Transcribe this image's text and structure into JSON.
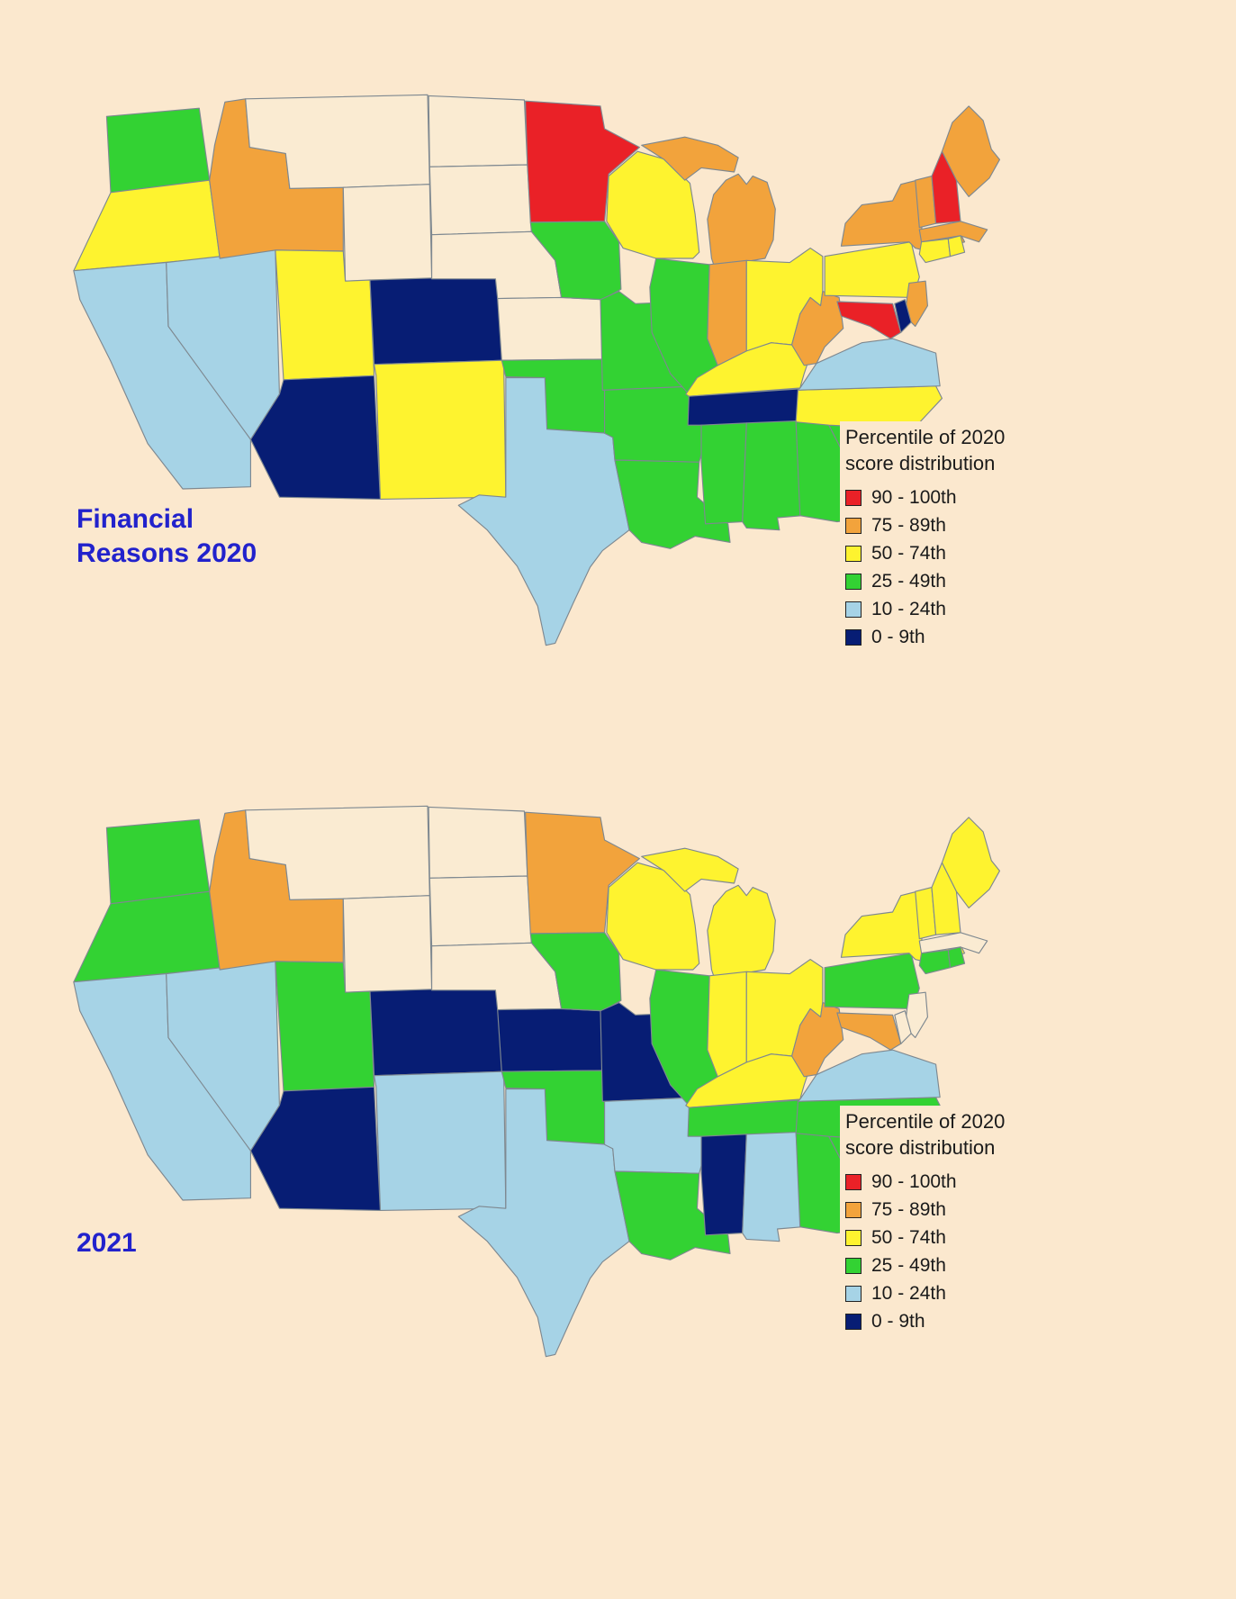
{
  "page": {
    "background_color": "#FBE8CE"
  },
  "legend": {
    "title_line1": "Percentile of 2020",
    "title_line2": "score distribution",
    "items": [
      {
        "key": "p90",
        "label": "90 - 100th",
        "color": "#EA2127"
      },
      {
        "key": "p75",
        "label": "75 - 89th",
        "color": "#F2A33C"
      },
      {
        "key": "p50",
        "label": "50 - 74th",
        "color": "#FEF32F"
      },
      {
        "key": "p25",
        "label": "25 - 49th",
        "color": "#33D233"
      },
      {
        "key": "p10",
        "label": "10 - 24th",
        "color": "#A6D3E6"
      },
      {
        "key": "p0",
        "label": "0 - 9th",
        "color": "#071D74"
      }
    ],
    "nodata_color": "#FAEBD2",
    "border_color": "#7E8890"
  },
  "maps": [
    {
      "title_lines": [
        "Financial",
        "Reasons 2020"
      ],
      "states": {
        "WA": "p25",
        "OR": "p50",
        "CA": "p10",
        "NV": "p10",
        "ID": "p75",
        "MT": null,
        "WY": null,
        "UT": "p50",
        "CO": "p0",
        "AZ": "p0",
        "NM": "p50",
        "ND": null,
        "SD": null,
        "NE": null,
        "KS": null,
        "OK": "p25",
        "TX": "p10",
        "MN": "p90",
        "IA": "p25",
        "MO": "p25",
        "AR": "p25",
        "LA": "p25",
        "WI": "p50",
        "IL": "p25",
        "MI": "p75",
        "IN": "p75",
        "OH": "p50",
        "KY": "p50",
        "TN": "p0",
        "MS": "p25",
        "AL": "p25",
        "GA": "p25",
        "FL": "p10",
        "SC": "p25",
        "NC": "p50",
        "VA": "p10",
        "WV": "p75",
        "PA": "p50",
        "NY": "p75",
        "NJ": "p75",
        "DE": "p0",
        "MD": "p90",
        "CT": "p50",
        "RI": "p50",
        "MA": "p75",
        "VT": "p75",
        "NH": "p90",
        "ME": "p75"
      }
    },
    {
      "title_lines": [
        "2021"
      ],
      "states": {
        "WA": "p25",
        "OR": "p25",
        "CA": "p10",
        "NV": "p10",
        "ID": "p75",
        "MT": null,
        "WY": null,
        "UT": "p25",
        "CO": "p0",
        "AZ": "p0",
        "NM": "p10",
        "ND": null,
        "SD": null,
        "NE": null,
        "KS": "p0",
        "OK": "p25",
        "TX": "p10",
        "MN": "p75",
        "IA": "p25",
        "MO": "p0",
        "AR": "p10",
        "LA": "p25",
        "WI": "p50",
        "IL": "p25",
        "MI": "p50",
        "IN": "p50",
        "OH": "p50",
        "KY": "p50",
        "TN": "p25",
        "MS": "p0",
        "AL": "p10",
        "GA": "p25",
        "FL": "p0",
        "SC": "p25",
        "NC": "p25",
        "VA": "p10",
        "WV": "p75",
        "PA": "p25",
        "NY": "p50",
        "NJ": null,
        "DE": null,
        "MD": "p75",
        "CT": "p25",
        "RI": "p25",
        "MA": null,
        "VT": "p50",
        "NH": "p50",
        "ME": "p50"
      }
    }
  ]
}
